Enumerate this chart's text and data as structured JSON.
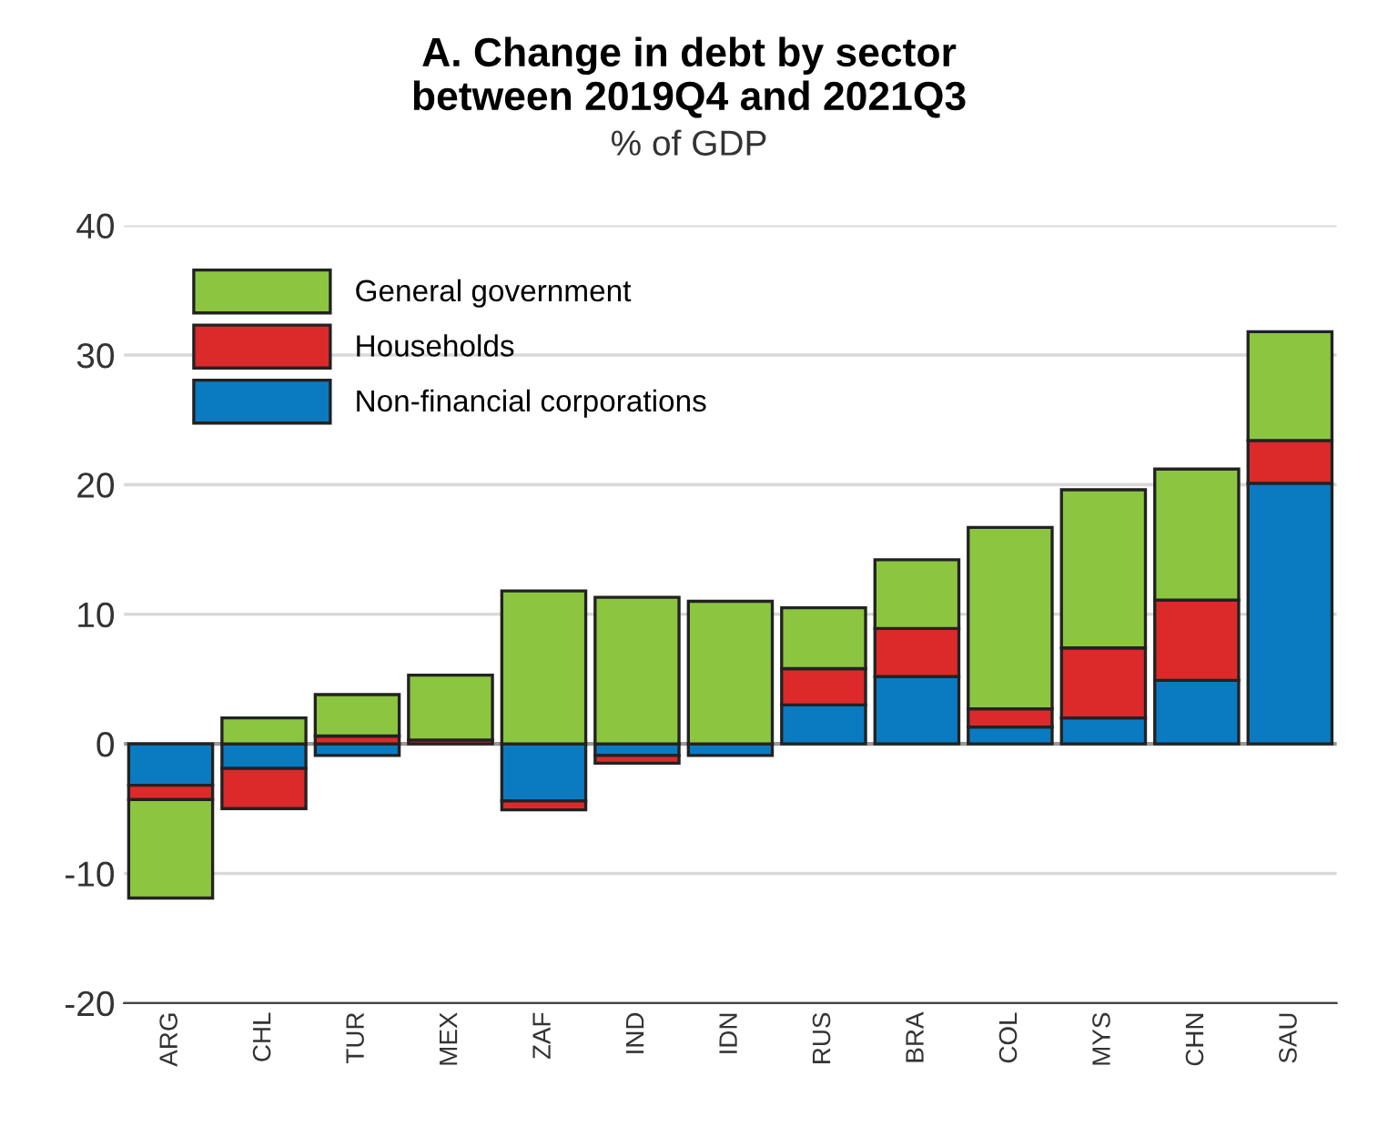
{
  "chart_data": {
    "type": "bar",
    "stacked": true,
    "title": "A. Change in debt by sector\nbetween 2019Q4 and 2021Q3",
    "subtitle": "% of GDP",
    "categories": [
      "ARG",
      "CHL",
      "TUR",
      "MEX",
      "ZAF",
      "IND",
      "IDN",
      "RUS",
      "BRA",
      "COL",
      "MYS",
      "CHN",
      "SAU"
    ],
    "series": [
      {
        "name": "Non-financial corporations",
        "color": "#0a7bc1",
        "values": [
          -3.2,
          -1.9,
          -0.9,
          0,
          -4.4,
          -0.9,
          -0.9,
          3.0,
          5.2,
          1.3,
          2.0,
          4.9,
          20.1
        ]
      },
      {
        "name": "Households",
        "color": "#dc2a2a",
        "values": [
          -1.1,
          -3.1,
          0.6,
          0.3,
          -0.7,
          -0.6,
          0,
          2.8,
          3.7,
          1.4,
          5.4,
          6.2,
          3.3
        ]
      },
      {
        "name": "General government",
        "color": "#8cc641",
        "values": [
          -7.6,
          2.0,
          3.2,
          5.0,
          11.8,
          11.3,
          11.0,
          4.7,
          5.3,
          14.0,
          12.2,
          10.1,
          8.4
        ]
      }
    ],
    "ylim": [
      -20,
      40
    ],
    "yticks": [
      -20,
      -10,
      0,
      10,
      20,
      30,
      40
    ],
    "grid": "y",
    "legend": "top left"
  }
}
